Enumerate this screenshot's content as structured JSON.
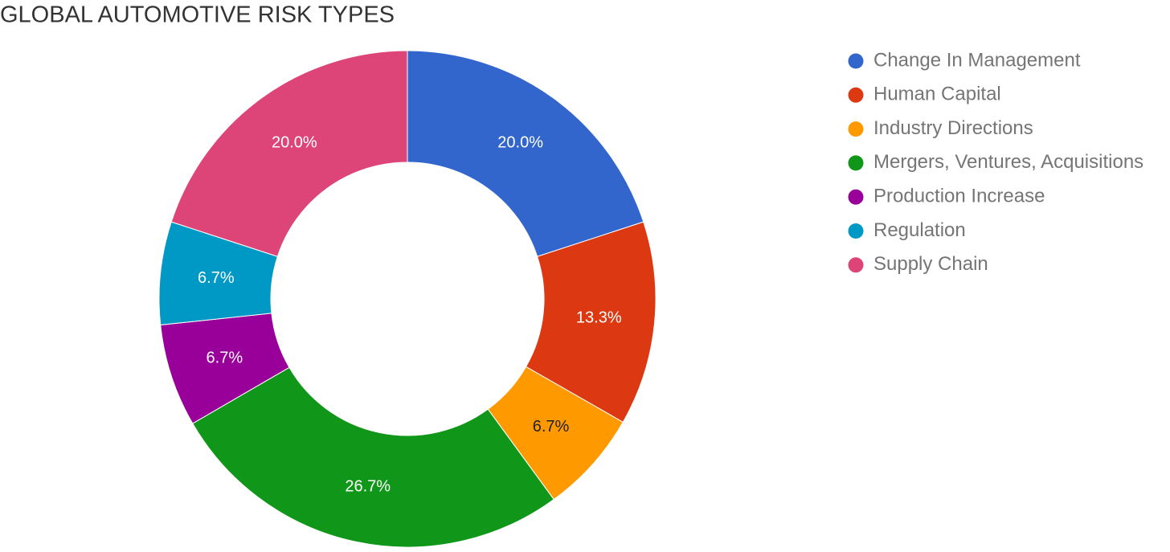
{
  "chart_data": {
    "type": "donut",
    "title": "GLOBAL AUTOMOTIVE RISK TYPES",
    "categories": [
      "Change In Management",
      "Human Capital",
      "Industry Directions",
      "Mergers, Ventures, Acquisitions",
      "Production Increase",
      "Regulation",
      "Supply Chain"
    ],
    "values": [
      20.0,
      13.3,
      6.7,
      26.7,
      6.7,
      6.7,
      20.0
    ],
    "value_labels": [
      "20.0%",
      "13.3%",
      "6.7%",
      "26.7%",
      "6.7%",
      "6.7%",
      "20.0%"
    ],
    "colors": [
      "#3366cc",
      "#dc3912",
      "#ff9900",
      "#109618",
      "#990099",
      "#0099c6",
      "#dd4477"
    ],
    "legend": "right"
  }
}
